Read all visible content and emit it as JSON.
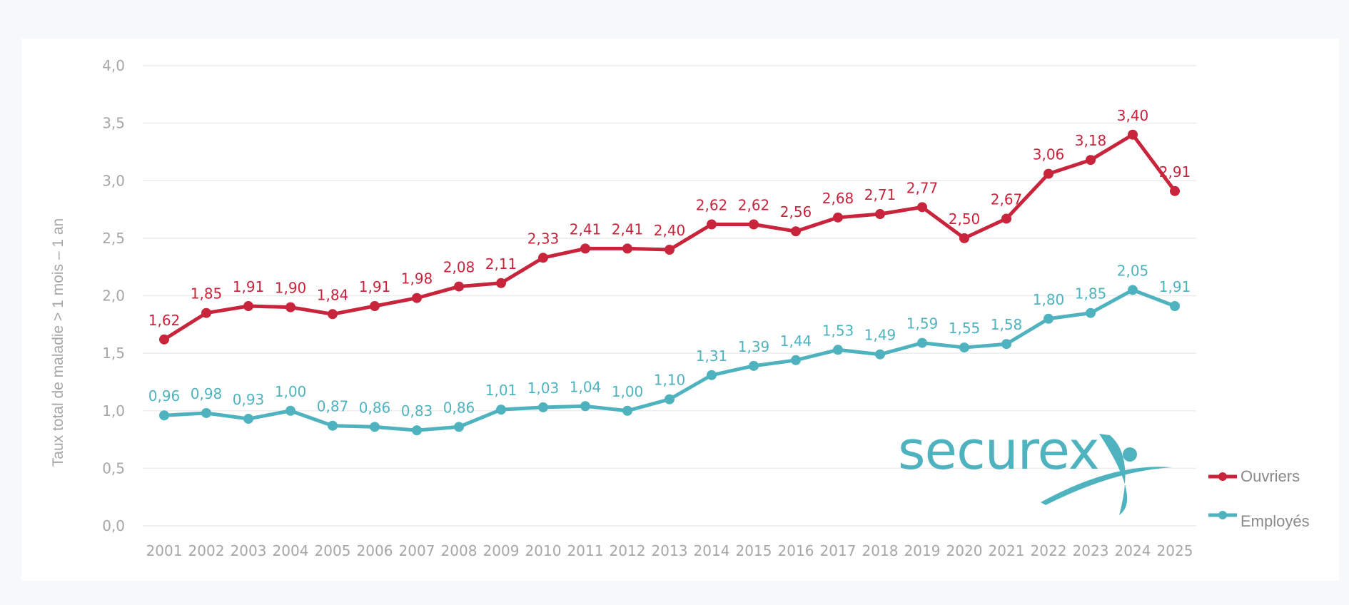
{
  "chart_data": {
    "type": "line",
    "ylabel": "Taux total de maladie > 1 mois – 1 an",
    "xlabel": "",
    "ylim": [
      0,
      4
    ],
    "yticks": [
      "0,0",
      "0,5",
      "1,0",
      "1,5",
      "2,0",
      "2,5",
      "3,0",
      "3,5",
      "4,0"
    ],
    "grid": true,
    "legend_position": "right",
    "x": [
      "2001",
      "2002",
      "2003",
      "2004",
      "2005",
      "2006",
      "2007",
      "2008",
      "2009",
      "2010",
      "2011",
      "2012",
      "2013",
      "2014",
      "2015",
      "2016",
      "2017",
      "2018",
      "2019",
      "2020",
      "2021",
      "2022",
      "2023",
      "2024",
      "2025"
    ],
    "series": [
      {
        "name": "Ouvriers",
        "color": "#c8243c",
        "values": [
          1.62,
          1.85,
          1.91,
          1.9,
          1.84,
          1.91,
          1.98,
          2.08,
          2.11,
          2.33,
          2.41,
          2.41,
          2.4,
          2.62,
          2.62,
          2.56,
          2.68,
          2.71,
          2.77,
          2.5,
          2.67,
          3.06,
          3.18,
          3.4,
          2.91
        ],
        "labels": [
          "1,62",
          "1,85",
          "1,91",
          "1,90",
          "1,84",
          "1,91",
          "1,98",
          "2,08",
          "2,11",
          "2,33",
          "2,41",
          "2,41",
          "2,40",
          "2,62",
          "2,62",
          "2,56",
          "2,68",
          "2,71",
          "2,77",
          "2,50",
          "2,67",
          "3,06",
          "3,18",
          "3,40",
          "2,91"
        ]
      },
      {
        "name": "Employés",
        "color": "#4fb3bf",
        "values": [
          0.96,
          0.98,
          0.93,
          1.0,
          0.87,
          0.86,
          0.83,
          0.86,
          1.01,
          1.03,
          1.04,
          1.0,
          1.1,
          1.31,
          1.39,
          1.44,
          1.53,
          1.49,
          1.59,
          1.55,
          1.58,
          1.8,
          1.85,
          2.05,
          1.91
        ],
        "labels": [
          "0,96",
          "0,98",
          "0,93",
          "1,00",
          "0,87",
          "0,86",
          "0,83",
          "0,86",
          "1,01",
          "1,03",
          "1,04",
          "1,00",
          "1,10",
          "1,31",
          "1,39",
          "1,44",
          "1,53",
          "1,49",
          "1,59",
          "1,55",
          "1,58",
          "1,80",
          "1,85",
          "2,05",
          "1,91"
        ]
      }
    ]
  },
  "logo": {
    "text": "securex",
    "color": "#4fb3bf"
  }
}
